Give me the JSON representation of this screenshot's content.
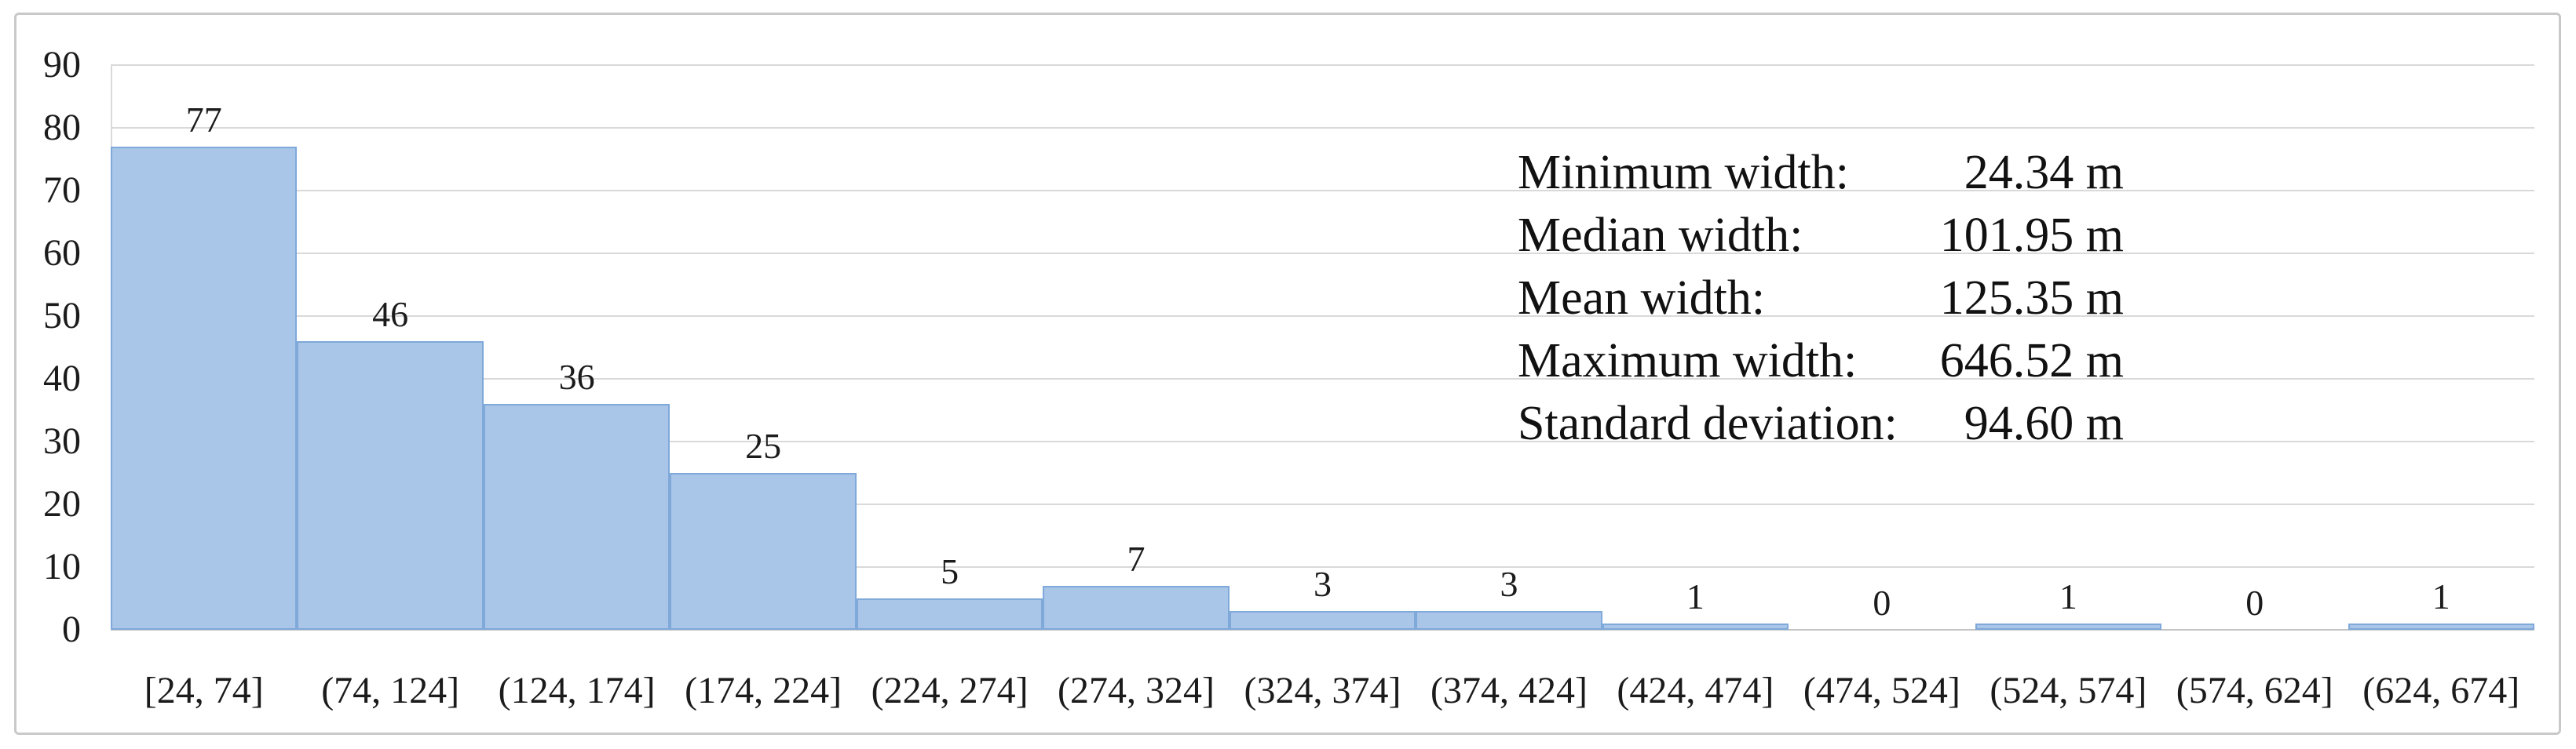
{
  "chart_data": {
    "type": "bar",
    "title": "",
    "xlabel": "",
    "ylabel": "",
    "categories": [
      "[24, 74]",
      "(74, 124]",
      "(124, 174]",
      "(174, 224]",
      "(224, 274]",
      "(274, 324]",
      "(324, 374]",
      "(374, 424]",
      "(424, 474]",
      "(474, 524]",
      "(524, 574]",
      "(574, 624]",
      "(624, 674]"
    ],
    "values": [
      77,
      46,
      36,
      25,
      5,
      7,
      3,
      3,
      1,
      0,
      1,
      0,
      1
    ],
    "ylim": [
      0,
      90
    ],
    "yticks": [
      0,
      10,
      20,
      30,
      40,
      50,
      60,
      70,
      80,
      90
    ],
    "grid": true,
    "bar_gap_percent": 0,
    "legend": null,
    "annotations": "value labels above each bar"
  },
  "stats_panel": {
    "rows": [
      {
        "label": "Minimum width:",
        "value": "24.34 m"
      },
      {
        "label": "Median width:",
        "value": "101.95 m"
      },
      {
        "label": "Mean width:",
        "value": "125.35 m"
      },
      {
        "label": "Maximum width:",
        "value": "646.52 m"
      },
      {
        "label": "Standard deviation:",
        "value": "94.60 m"
      }
    ]
  },
  "colors": {
    "bar_fill": "#a9c5e8",
    "bar_border": "#7fa9d9",
    "gridline": "#d9d9d9",
    "axis_line": "#c3c3c3",
    "figure_border": "#c9c9c9",
    "text": "#1b1b1b"
  }
}
